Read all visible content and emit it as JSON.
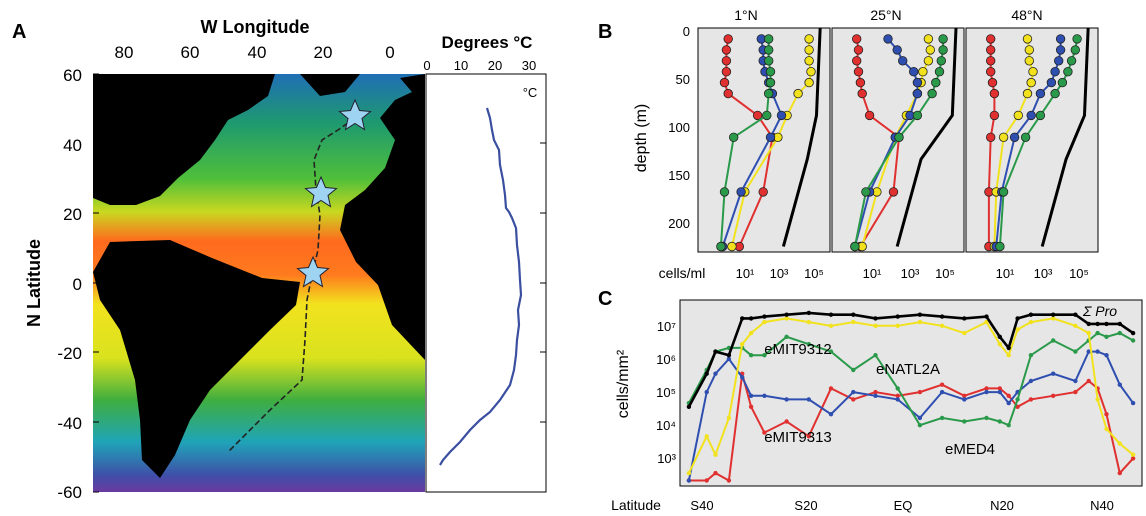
{
  "panel_a": {
    "letter": "A",
    "top_axis_title": "W Longitude",
    "top_ticks": [
      "80",
      "60",
      "40",
      "20",
      "0"
    ],
    "left_axis_title": "N Latitude",
    "left_ticks": [
      "60",
      "40",
      "20",
      "0",
      "-20",
      "-40",
      "-60"
    ],
    "temp_axis_title": "Degrees °C",
    "temp_ticks": [
      "0",
      "10",
      "20",
      "30"
    ],
    "temp_unit": "°C",
    "colors": {
      "ocean_warm": "#ff5a1e",
      "ocean_mid": "#f2e21e",
      "ocean_cool": "#2aa24a",
      "ocean_cold": "#1f6fb5",
      "land": "#000000",
      "star": "#9fd3f2",
      "temp_line": "#3a4fa0"
    }
  },
  "panel_b": {
    "letter": "B",
    "stations": [
      "1°N",
      "25°N",
      "48°N"
    ],
    "ylabel": "depth (m)",
    "yticks": [
      "0",
      "50",
      "100",
      "150",
      "200"
    ],
    "xlabel": "cells/ml",
    "xticks": [
      "10¹",
      "10³",
      "10⁵"
    ]
  },
  "panel_c": {
    "letter": "C",
    "ylabel": "cells/mm²",
    "yticks": [
      "10⁷",
      "10⁶",
      "10⁵",
      "10⁴",
      "10³"
    ],
    "xlabel": "Latitude",
    "xticks": [
      "S40",
      "S20",
      "EQ",
      "N20",
      "N40"
    ],
    "sum_label": "Σ Pro",
    "labels": [
      "eMIT9312",
      "eNATL2A",
      "eMIT9313",
      "eMED4"
    ]
  },
  "chart_data": [
    {
      "type": "line",
      "title": "",
      "xlabel": "latitude (°)",
      "ylabel": "log10 cells/mm²",
      "x": [
        -52,
        -48,
        -46,
        -43,
        -40,
        -38,
        -35,
        -30,
        -25,
        -20,
        -15,
        -10,
        -5,
        0,
        5,
        10,
        15,
        18,
        20,
        22,
        25,
        30,
        35,
        38,
        40,
        42,
        45,
        48
      ],
      "series": [
        {
          "name": "Σ Pro",
          "color": "#000000",
          "values": [
            4.8,
            5.7,
            6.3,
            6.2,
            7.2,
            7.2,
            7.25,
            7.3,
            7.35,
            7.3,
            7.3,
            7.2,
            7.25,
            7.3,
            7.25,
            7.2,
            7.25,
            6.7,
            6.4,
            7.2,
            7.3,
            7.3,
            7.3,
            7.05,
            7.05,
            7.05,
            7.05,
            6.8
          ]
        },
        {
          "name": "eMIT9312",
          "color": "#f2e21e",
          "values": [
            3.0,
            4.0,
            3.5,
            4.5,
            6.5,
            6.8,
            7.1,
            7.2,
            7.1,
            7.0,
            7.1,
            7.0,
            7.0,
            7.1,
            7.0,
            6.8,
            7.1,
            6.5,
            6.2,
            6.9,
            7.1,
            7.2,
            7.0,
            6.8,
            5.0,
            4.2,
            3.8,
            3.5
          ]
        },
        {
          "name": "eNATL2A",
          "color": "#2a9a4a",
          "values": [
            4.9,
            5.8,
            6.3,
            6.4,
            6.4,
            6.2,
            6.2,
            6.7,
            6.5,
            6.3,
            5.8,
            6.2,
            5.3,
            4.3,
            4.5,
            4.4,
            4.5,
            4.4,
            4.3,
            5.0,
            6.2,
            6.6,
            6.3,
            6.6,
            6.8,
            6.7,
            6.8,
            6.6
          ]
        },
        {
          "name": "eMED4",
          "color": "#2f4fb0",
          "values": [
            2.8,
            5.2,
            5.7,
            6.1,
            5.6,
            5.1,
            5.1,
            5.0,
            5.0,
            4.6,
            5.2,
            5.1,
            5.0,
            4.5,
            5.2,
            5.0,
            5.2,
            5.2,
            4.9,
            5.2,
            5.5,
            5.7,
            5.5,
            6.3,
            6.3,
            6.2,
            5.4,
            4.9
          ]
        },
        {
          "name": "eMIT9313",
          "color": "#e03030",
          "values": [
            2.8,
            2.8,
            3.0,
            2.8,
            5.7,
            4.8,
            4.1,
            4.4,
            4.0,
            5.3,
            5.0,
            5.2,
            5.1,
            5.2,
            5.4,
            5.1,
            5.3,
            5.3,
            5.1,
            4.8,
            5.0,
            5.1,
            5.2,
            5.5,
            5.3,
            4.6,
            3.0,
            3.4
          ]
        }
      ]
    }
  ]
}
